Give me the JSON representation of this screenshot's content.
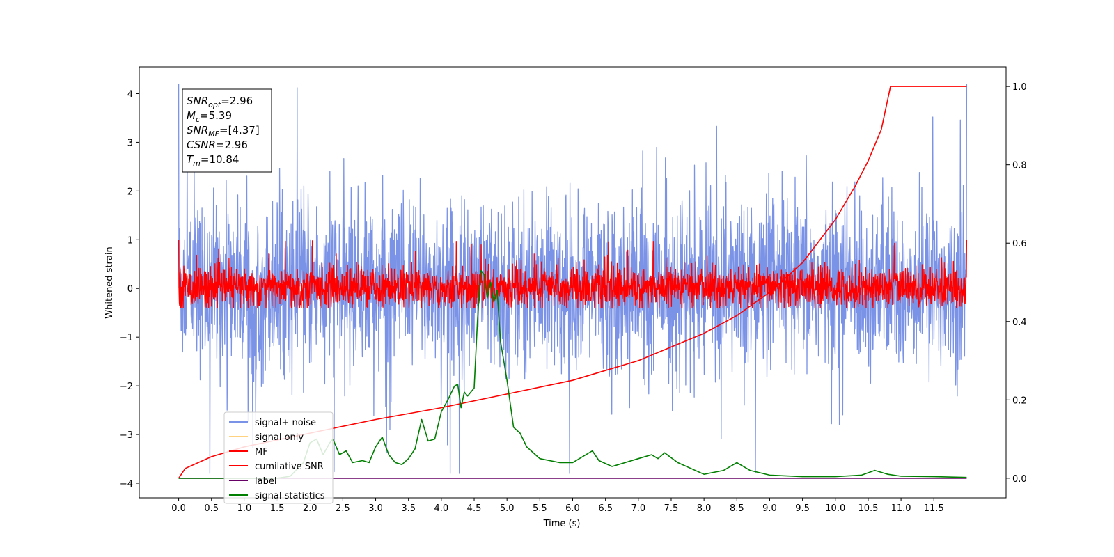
{
  "chart_data": {
    "type": "line",
    "xlabel": "Time (s)",
    "ylabel": "Whitened strain",
    "xlim": [
      -0.6,
      12.6
    ],
    "ylim": [
      -4.3,
      4.55
    ],
    "y2lim": [
      -0.05,
      1.05
    ],
    "x_ticks": [
      "0.0",
      "0.5",
      "1.0",
      "1.5",
      "2.0",
      "2.5",
      "3.0",
      "3.5",
      "4.0",
      "4.5",
      "5.0",
      "5.5",
      "6.0",
      "6.5",
      "7.0",
      "7.5",
      "8.0",
      "8.5",
      "9.0",
      "9.5",
      "10.0",
      "10.5",
      "11.0",
      "11.5"
    ],
    "y_ticks": [
      "4",
      "3",
      "2",
      "1",
      "0",
      "−1",
      "−2",
      "−3",
      "−4"
    ],
    "y2_ticks": [
      "1.0",
      "0.8",
      "0.6",
      "0.4",
      "0.2",
      "0.0"
    ],
    "grid": false,
    "legend_position": "lower-left",
    "legend": [
      {
        "label": "signal+ noise",
        "color": "#7b93e6"
      },
      {
        "label": "signal only",
        "color": "#ffd27f"
      },
      {
        "label": "MF",
        "color": "#ff0000"
      },
      {
        "label": "cumilative SNR",
        "color": "#ff0000"
      },
      {
        "label": "label",
        "color": "#660066"
      },
      {
        "label": "signal statistics",
        "color": "#007f00"
      }
    ],
    "annotation": [
      {
        "base": "SNR",
        "sub": "opt",
        "value": "=2.96"
      },
      {
        "base": "M",
        "sub": "c",
        "value": "=5.39"
      },
      {
        "base": "SNR",
        "sub": "MF",
        "value": "=[4.37]"
      },
      {
        "base": "CSNR",
        "sub": "",
        "value": "=2.96"
      },
      {
        "base": "T",
        "sub": "m",
        "value": "=10.84"
      }
    ],
    "series": [
      {
        "name": "signal+ noise",
        "axis": "left",
        "kind": "noise",
        "x_range": [
          0.0,
          12.0
        ],
        "typical_band": [
          -1.5,
          1.6
        ],
        "extremes": [
          -3.8,
          4.2
        ]
      },
      {
        "name": "MF",
        "axis": "left",
        "kind": "noise",
        "x_range": [
          0.0,
          12.0
        ],
        "typical_band": [
          -0.35,
          0.4
        ],
        "extremes": [
          -0.4,
          1.0
        ]
      },
      {
        "name": "cumilative SNR",
        "axis": "right",
        "x": [
          0.0,
          0.1,
          0.5,
          1.0,
          2.0,
          3.0,
          4.0,
          5.0,
          6.0,
          7.0,
          8.0,
          8.5,
          9.0,
          9.5,
          10.0,
          10.3,
          10.5,
          10.7,
          10.84,
          12.0
        ],
        "y": [
          0.0,
          0.025,
          0.055,
          0.08,
          0.115,
          0.15,
          0.18,
          0.215,
          0.25,
          0.3,
          0.37,
          0.415,
          0.475,
          0.55,
          0.66,
          0.745,
          0.81,
          0.89,
          1.0,
          1.0
        ]
      },
      {
        "name": "label",
        "axis": "right",
        "x": [
          0.0,
          12.0
        ],
        "y": [
          0.0,
          0.0
        ]
      },
      {
        "name": "signal statistics",
        "axis": "right",
        "x": [
          0.0,
          1.0,
          1.5,
          1.7,
          1.9,
          2.0,
          2.1,
          2.2,
          2.3,
          2.35,
          2.45,
          2.55,
          2.65,
          2.8,
          2.9,
          3.0,
          3.1,
          3.2,
          3.3,
          3.4,
          3.5,
          3.6,
          3.7,
          3.8,
          3.9,
          4.0,
          4.1,
          4.2,
          4.25,
          4.3,
          4.35,
          4.4,
          4.5,
          4.55,
          4.6,
          4.65,
          4.7,
          4.75,
          4.8,
          4.85,
          4.9,
          5.0,
          5.1,
          5.2,
          5.3,
          5.5,
          5.8,
          6.0,
          6.3,
          6.4,
          6.6,
          7.0,
          7.2,
          7.3,
          7.4,
          7.6,
          7.8,
          8.0,
          8.3,
          8.5,
          8.7,
          9.0,
          9.5,
          10.0,
          10.4,
          10.6,
          10.8,
          11.0,
          11.5,
          12.0
        ],
        "y": [
          0.0,
          0.0,
          0.0,
          0.005,
          0.04,
          0.09,
          0.1,
          0.06,
          0.09,
          0.1,
          0.06,
          0.07,
          0.04,
          0.045,
          0.04,
          0.08,
          0.105,
          0.06,
          0.04,
          0.035,
          0.05,
          0.075,
          0.15,
          0.095,
          0.1,
          0.17,
          0.2,
          0.235,
          0.24,
          0.18,
          0.22,
          0.21,
          0.23,
          0.4,
          0.53,
          0.52,
          0.46,
          0.5,
          0.45,
          0.48,
          0.35,
          0.25,
          0.13,
          0.115,
          0.08,
          0.05,
          0.04,
          0.04,
          0.07,
          0.045,
          0.03,
          0.05,
          0.06,
          0.05,
          0.065,
          0.04,
          0.025,
          0.01,
          0.02,
          0.04,
          0.02,
          0.008,
          0.004,
          0.004,
          0.008,
          0.02,
          0.01,
          0.005,
          0.004,
          0.002
        ]
      }
    ]
  }
}
